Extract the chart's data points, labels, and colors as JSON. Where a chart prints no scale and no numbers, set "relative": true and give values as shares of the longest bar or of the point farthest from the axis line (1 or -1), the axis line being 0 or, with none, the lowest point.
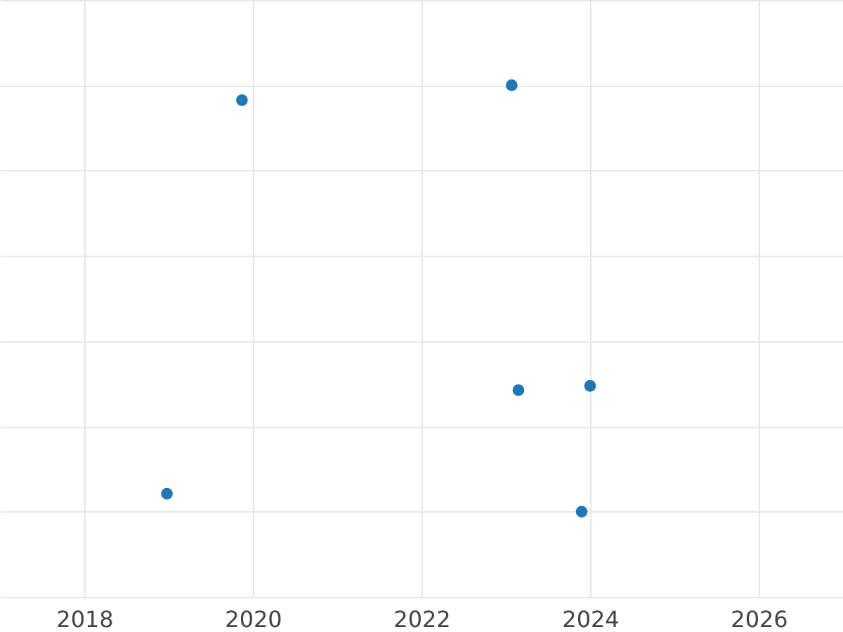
{
  "chart_data": {
    "type": "scatter",
    "relative": true,
    "x": [
      2019.87,
      2023.07,
      2023.15,
      2024.0,
      2018.98,
      2023.9
    ],
    "series": [
      {
        "color": "#1f77b4",
        "values": [
          0.965,
          1,
          0.285,
          0.295,
          0.042,
          0
        ]
      }
    ],
    "xlim": [
      2017,
      2027
    ],
    "xticks": [
      2018,
      2020,
      2022,
      2024,
      2026
    ],
    "grid": true,
    "marker": "circle"
  }
}
